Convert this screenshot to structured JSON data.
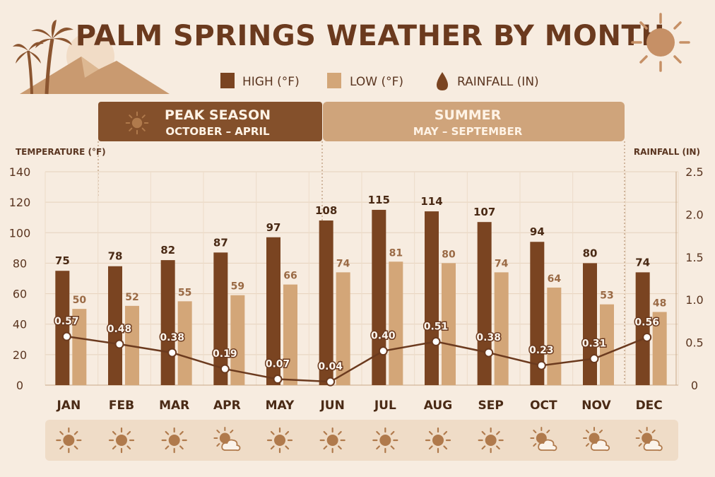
{
  "title": "PALM SPRINGS WEATHER BY MONTH",
  "legend": [
    {
      "label": "HIGH (°F)",
      "icon": "square-dark"
    },
    {
      "label": "LOW (°F)",
      "icon": "square-light"
    },
    {
      "label": "RAINFALL (IN)",
      "icon": "raindrop-icon"
    }
  ],
  "bands": [
    {
      "title": "PEAK SEASON",
      "subtitle": "OCTOBER – APRIL",
      "icon": "sun-icon"
    },
    {
      "title": "SUMMER",
      "subtitle": "MAY – SEPTEMBER"
    }
  ],
  "colors": {
    "high": "#7a4421",
    "low": "#d3a678",
    "rain_line": "#6b3a1e",
    "peak_band": "#84502b",
    "summer_band": "#cfa47b",
    "background": "#f7ece0"
  },
  "chart_data": {
    "type": "bar",
    "categories": [
      "JAN",
      "FEB",
      "MAR",
      "APR",
      "MAY",
      "JUN",
      "JUL",
      "AUG",
      "SEP",
      "OCT",
      "NOV",
      "DEC"
    ],
    "series": [
      {
        "name": "HIGH (°F)",
        "type": "bar",
        "axis": "left",
        "values": [
          75,
          78,
          82,
          87,
          97,
          108,
          115,
          114,
          107,
          94,
          80,
          74
        ]
      },
      {
        "name": "LOW (°F)",
        "type": "bar",
        "axis": "left",
        "values": [
          50,
          52,
          55,
          59,
          66,
          74,
          81,
          80,
          74,
          64,
          53,
          48
        ]
      },
      {
        "name": "RAINFALL (IN)",
        "type": "line",
        "axis": "right",
        "values": [
          0.57,
          0.48,
          0.38,
          0.19,
          0.07,
          0.04,
          0.4,
          0.51,
          0.38,
          0.23,
          0.31,
          0.56
        ]
      }
    ],
    "ylabel": "TEMPERATURE (°F)",
    "ylabel_right": "RAINFALL (IN)",
    "ylim": [
      0,
      140
    ],
    "yticks": [
      0,
      20,
      40,
      60,
      80,
      100,
      120,
      140
    ],
    "ylim_right": [
      0,
      2.5
    ],
    "yticks_right": [
      "0",
      "0.5",
      "1.0",
      "1.5",
      "2.0",
      "2.5"
    ],
    "grid": true,
    "legend_position": "top-center"
  },
  "weather_icons": [
    "sun-icon",
    "sun-icon",
    "sun-icon",
    "sun-cloud-icon",
    "sun-icon",
    "sun-icon",
    "sun-icon",
    "sun-icon",
    "sun-icon",
    "sun-cloud-icon",
    "sun-cloud-icon",
    "sun-cloud-icon"
  ]
}
